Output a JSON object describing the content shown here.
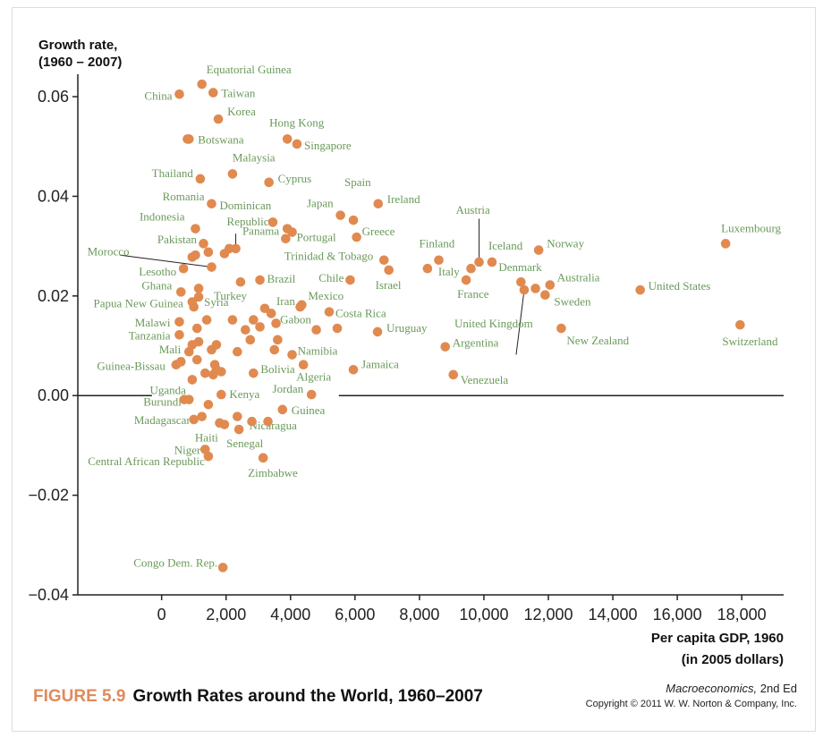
{
  "figure": {
    "number": "FIGURE 5.9",
    "title": "Growth Rates around the World, 1960–2007",
    "book": "Macroeconomics,",
    "edition": "2nd Ed",
    "copyright": "Copyright © 2011 W. W. Norton & Company, Inc."
  },
  "chart_data": {
    "type": "scatter",
    "ylabel_line1": "Growth rate,",
    "ylabel_line2": "(1960 – 2007)",
    "xlabel_line1": "Per capita GDP, 1960",
    "xlabel_line2": "(in 2005 dollars)",
    "xlim": [
      -2600,
      19300
    ],
    "ylim": [
      -0.04,
      0.0645
    ],
    "x_ticks": [
      {
        "value": 0,
        "label": "0"
      },
      {
        "value": 2000,
        "label": "2,000"
      },
      {
        "value": 4000,
        "label": "4,000"
      },
      {
        "value": 6000,
        "label": "6,000"
      },
      {
        "value": 8000,
        "label": "8,000"
      },
      {
        "value": 10000,
        "label": "10,000"
      },
      {
        "value": 12000,
        "label": "12,000"
      },
      {
        "value": 14000,
        "label": "14,000"
      },
      {
        "value": 16000,
        "label": "16,000"
      },
      {
        "value": 18000,
        "label": "18,000"
      }
    ],
    "y_ticks": [
      {
        "value": 0.06,
        "label": "0.06"
      },
      {
        "value": 0.04,
        "label": "0.04"
      },
      {
        "value": 0.02,
        "label": "0.02"
      },
      {
        "value": 0.0,
        "label": "0.00"
      },
      {
        "value": -0.02,
        "label": "−0.02"
      },
      {
        "value": -0.04,
        "label": "−0.04"
      }
    ],
    "colors": {
      "point": "#e08a50",
      "label": "#6a9a5a"
    },
    "points": [
      {
        "label": "Equatorial Guinea",
        "x": 1250,
        "y": 0.0625
      },
      {
        "label": "China",
        "x": 550,
        "y": 0.0605
      },
      {
        "label": "Taiwan",
        "x": 1600,
        "y": 0.0608
      },
      {
        "label": "Korea",
        "x": 1760,
        "y": 0.0555
      },
      {
        "label": "Botswana",
        "x": 850,
        "y": 0.0515
      },
      {
        "label": "Hong Kong",
        "x": 3900,
        "y": 0.0515
      },
      {
        "label": "Singapore",
        "x": 4200,
        "y": 0.0505
      },
      {
        "label": "Thailand",
        "x": 1200,
        "y": 0.0435
      },
      {
        "label": "Malaysia",
        "x": 2200,
        "y": 0.0445
      },
      {
        "label": "Cyprus",
        "x": 3330,
        "y": 0.0428
      },
      {
        "label": "Spain",
        "x": 5950,
        "y": 0.0352
      },
      {
        "label": "Ireland",
        "x": 6720,
        "y": 0.0385
      },
      {
        "label": "Romania",
        "x": 1550,
        "y": 0.0385
      },
      {
        "label": "Dominican Republic",
        "x": 2300,
        "y": 0.0295
      },
      {
        "label": "Indonesia",
        "x": 1050,
        "y": 0.0335
      },
      {
        "label": "Japan",
        "x": 5550,
        "y": 0.0362
      },
      {
        "label": "Portugal",
        "x": 4050,
        "y": 0.0328
      },
      {
        "label": "Greece",
        "x": 6050,
        "y": 0.0318
      },
      {
        "label": "Panama",
        "x": 3450,
        "y": 0.0348
      },
      {
        "label": "Pakistan",
        "x": 1450,
        "y": 0.0288
      },
      {
        "label": "Morocco",
        "x": 1550,
        "y": 0.0258
      },
      {
        "label": "Lesotho",
        "x": 680,
        "y": 0.0255
      },
      {
        "label": "Trinidad & Tobago",
        "x": 6900,
        "y": 0.0272
      },
      {
        "label": "Finland",
        "x": 8600,
        "y": 0.0272
      },
      {
        "label": "Austria",
        "x": 9850,
        "y": 0.0268
      },
      {
        "label": "Iceland",
        "x": 10250,
        "y": 0.0268
      },
      {
        "label": "Norway",
        "x": 11700,
        "y": 0.0292
      },
      {
        "label": "Luxembourg",
        "x": 17500,
        "y": 0.0305
      },
      {
        "label": "Chile",
        "x": 5850,
        "y": 0.0232
      },
      {
        "label": "Israel",
        "x": 7050,
        "y": 0.0252
      },
      {
        "label": "Italy",
        "x": 8250,
        "y": 0.0255
      },
      {
        "label": "France",
        "x": 9450,
        "y": 0.0232
      },
      {
        "label": "Denmark",
        "x": 11150,
        "y": 0.0228
      },
      {
        "label": "Australia",
        "x": 12050,
        "y": 0.0222
      },
      {
        "label": "United States",
        "x": 14850,
        "y": 0.0212
      },
      {
        "label": "Brazil",
        "x": 3050,
        "y": 0.0232
      },
      {
        "label": "Ghana",
        "x": 600,
        "y": 0.0208
      },
      {
        "label": "Turkey",
        "x": 2450,
        "y": 0.0228
      },
      {
        "label": "Papua New Guinea",
        "x": 950,
        "y": 0.0188
      },
      {
        "label": "Syria",
        "x": 1150,
        "y": 0.0198
      },
      {
        "label": "Iran",
        "x": 3200,
        "y": 0.0175
      },
      {
        "label": "Mexico",
        "x": 4350,
        "y": 0.0182
      },
      {
        "label": "Sweden",
        "x": 11900,
        "y": 0.0202
      },
      {
        "label": "Costa Rica",
        "x": 5200,
        "y": 0.0168
      },
      {
        "label": "United Kingdom",
        "x": 11250,
        "y": 0.0212
      },
      {
        "label": "Malawi",
        "x": 550,
        "y": 0.0148
      },
      {
        "label": "Gabon",
        "x": 3400,
        "y": 0.0165
      },
      {
        "label": "Tanzania",
        "x": 550,
        "y": 0.0122
      },
      {
        "label": "Uruguay",
        "x": 6700,
        "y": 0.0128
      },
      {
        "label": "New Zealand",
        "x": 12400,
        "y": 0.0135
      },
      {
        "label": "Switzerland",
        "x": 17950,
        "y": 0.0142
      },
      {
        "label": "Mali",
        "x": 850,
        "y": 0.0088
      },
      {
        "label": "Namibia",
        "x": 4050,
        "y": 0.0082
      },
      {
        "label": "Argentina",
        "x": 8800,
        "y": 0.0098
      },
      {
        "label": "Guinea-Bissau",
        "x": 450,
        "y": 0.0062
      },
      {
        "label": "Bolivia",
        "x": 2850,
        "y": 0.0045
      },
      {
        "label": "Algeria",
        "x": 4400,
        "y": 0.0062
      },
      {
        "label": "Jamaica",
        "x": 5950,
        "y": 0.0052
      },
      {
        "label": "Venezuela",
        "x": 9050,
        "y": 0.0042
      },
      {
        "label": "Uganda",
        "x": 950,
        "y": 0.0032
      },
      {
        "label": "Jordan",
        "x": 4650,
        "y": 0.0002
      },
      {
        "label": "Kenya",
        "x": 1850,
        "y": 0.0002
      },
      {
        "label": "Burundi",
        "x": 700,
        "y": -0.0008
      },
      {
        "label": "Guinea",
        "x": 3750,
        "y": -0.0028
      },
      {
        "label": "Madagascar",
        "x": 1000,
        "y": -0.0048
      },
      {
        "label": "Nicaragua",
        "x": 2800,
        "y": -0.0052
      },
      {
        "label": "Haiti",
        "x": 1950,
        "y": -0.0058
      },
      {
        "label": "Senegal",
        "x": 2400,
        "y": -0.0068
      },
      {
        "label": "Niger",
        "x": 1350,
        "y": -0.0108
      },
      {
        "label": "Central African Republic",
        "x": 1450,
        "y": -0.0122
      },
      {
        "label": "Zimbabwe",
        "x": 3150,
        "y": -0.0125
      },
      {
        "label": "Congo Dem. Rep.",
        "x": 1900,
        "y": -0.0345
      }
    ],
    "unlabeled_points": [
      [
        800,
        0.0515
      ],
      [
        1050,
        0.0282
      ],
      [
        950,
        0.0278
      ],
      [
        1300,
        0.0305
      ],
      [
        2100,
        0.0295
      ],
      [
        1950,
        0.0285
      ],
      [
        3900,
        0.0335
      ],
      [
        3850,
        0.0315
      ],
      [
        1150,
        0.0215
      ],
      [
        1400,
        0.0152
      ],
      [
        1000,
        0.0178
      ],
      [
        1100,
        0.0135
      ],
      [
        1150,
        0.0108
      ],
      [
        2200,
        0.0152
      ],
      [
        2600,
        0.0132
      ],
      [
        2850,
        0.0152
      ],
      [
        3050,
        0.0138
      ],
      [
        3550,
        0.0145
      ],
      [
        4300,
        0.0178
      ],
      [
        5450,
        0.0135
      ],
      [
        2750,
        0.0112
      ],
      [
        3600,
        0.0112
      ],
      [
        2350,
        0.0088
      ],
      [
        1550,
        0.0092
      ],
      [
        3500,
        0.0092
      ],
      [
        1100,
        0.0072
      ],
      [
        1650,
        0.0062
      ],
      [
        1700,
        0.0052
      ],
      [
        1350,
        0.0045
      ],
      [
        1850,
        0.0048
      ],
      [
        1600,
        0.0042
      ],
      [
        850,
        -0.0008
      ],
      [
        1450,
        -0.0018
      ],
      [
        1250,
        -0.0042
      ],
      [
        1800,
        -0.0055
      ],
      [
        2350,
        -0.0042
      ],
      [
        3300,
        -0.0052
      ],
      [
        950,
        0.0102
      ],
      [
        1700,
        0.0102
      ],
      [
        600,
        0.0068
      ],
      [
        4800,
        0.0132
      ],
      [
        9600,
        0.0255
      ],
      [
        11600,
        0.0215
      ]
    ],
    "leader_lines": [
      {
        "label": "Austria",
        "from": [
          9850,
          0.0355
        ],
        "to": [
          9850,
          0.0268
        ]
      },
      {
        "label": "Morocco",
        "from": [
          -1300,
          0.0282
        ],
        "to": [
          1550,
          0.0258
        ]
      },
      {
        "label": "Dominican Republic",
        "from": [
          2300,
          0.0325
        ],
        "to": [
          2300,
          0.0295
        ]
      },
      {
        "label": "United Kingdom",
        "from": [
          11000,
          0.0082
        ],
        "to": [
          11250,
          0.0212
        ]
      }
    ]
  }
}
